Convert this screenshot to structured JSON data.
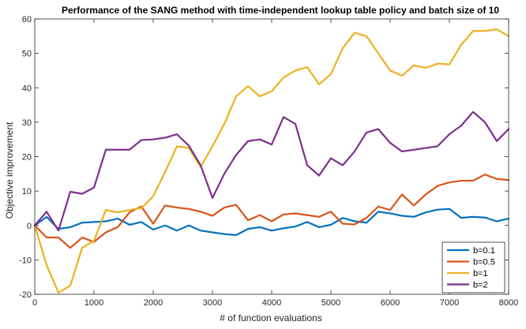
{
  "chart_data": {
    "type": "line",
    "title": "Performance of the SANG method with time-independent lookup table policy and batch size of 10",
    "xlabel": "# of function evaluations",
    "ylabel": "Objective improvement",
    "xlim": [
      0,
      8000
    ],
    "ylim": [
      -20,
      60
    ],
    "xticks": [
      0,
      1000,
      2000,
      3000,
      4000,
      5000,
      6000,
      7000,
      8000
    ],
    "yticks": [
      -20,
      -10,
      0,
      10,
      20,
      30,
      40,
      50,
      60
    ],
    "grid": false,
    "legend_position": "bottom-right",
    "x": [
      0,
      200,
      400,
      600,
      800,
      1000,
      1200,
      1400,
      1600,
      1800,
      2000,
      2200,
      2400,
      2600,
      2800,
      3000,
      3200,
      3400,
      3600,
      3800,
      4000,
      4200,
      4400,
      4600,
      4800,
      5000,
      5200,
      5400,
      5600,
      5800,
      6000,
      6200,
      6400,
      6600,
      6800,
      7000,
      7200,
      7400,
      7600,
      7800,
      8000
    ],
    "series": [
      {
        "name": "b=0.1",
        "color": "#0072BD",
        "values": [
          0,
          2.5,
          -1,
          -0.5,
          0.8,
          1.0,
          1.2,
          2.0,
          0.2,
          1.0,
          -1.2,
          0,
          -1.5,
          0,
          -1.5,
          -2.0,
          -2.5,
          -2.8,
          -1.0,
          -0.5,
          -1.5,
          -0.8,
          -0.3,
          1.0,
          -0.5,
          0.2,
          2.2,
          1.2,
          0.8,
          4.0,
          3.5,
          2.8,
          2.5,
          3.8,
          4.6,
          4.8,
          2.2,
          2.5,
          2.3,
          1.2,
          2.0
        ]
      },
      {
        "name": "b=0.5",
        "color": "#D95319",
        "values": [
          0,
          -3.5,
          -3.5,
          -6.5,
          -3.5,
          -4.8,
          -2.0,
          -0.5,
          3.8,
          5.5,
          0.5,
          5.8,
          5.2,
          4.8,
          4.0,
          2.8,
          5.2,
          6.0,
          1.5,
          3.0,
          1.2,
          3.2,
          3.5,
          3.0,
          2.5,
          4.0,
          0.5,
          0.3,
          2.2,
          5.5,
          4.5,
          9.0,
          5.8,
          9.0,
          11.5,
          12.5,
          13.0,
          13.0,
          14.8,
          13.5,
          13.2
        ]
      },
      {
        "name": "b=1",
        "color": "#EDB120",
        "values": [
          0,
          -11.5,
          -19.5,
          -17.5,
          -6.5,
          -4.5,
          4.5,
          3.8,
          4.5,
          5.0,
          8.5,
          15.5,
          23.0,
          22.5,
          17.0,
          23.0,
          29.5,
          37.5,
          40.5,
          37.5,
          39.0,
          43.0,
          45.0,
          46.0,
          41.0,
          44.0,
          51.5,
          56.0,
          55.0,
          50.0,
          45.0,
          43.5,
          46.5,
          45.8,
          47.0,
          46.8,
          52.5,
          56.5,
          56.5,
          57.0,
          55.0
        ]
      },
      {
        "name": "b=2",
        "color": "#7E2F8E",
        "values": [
          0,
          4.0,
          -1.5,
          9.8,
          9.2,
          11.0,
          22.0,
          22.0,
          22.0,
          24.8,
          25.0,
          25.5,
          26.5,
          23.2,
          17.5,
          8.0,
          15.0,
          20.5,
          24.5,
          25.0,
          23.5,
          31.5,
          29.5,
          17.5,
          14.5,
          19.5,
          17.5,
          21.5,
          27.0,
          28.0,
          24.0,
          21.5,
          22.0,
          22.5,
          23.0,
          26.5,
          29.0,
          33.0,
          30.0,
          24.5,
          28.0
        ]
      }
    ]
  }
}
